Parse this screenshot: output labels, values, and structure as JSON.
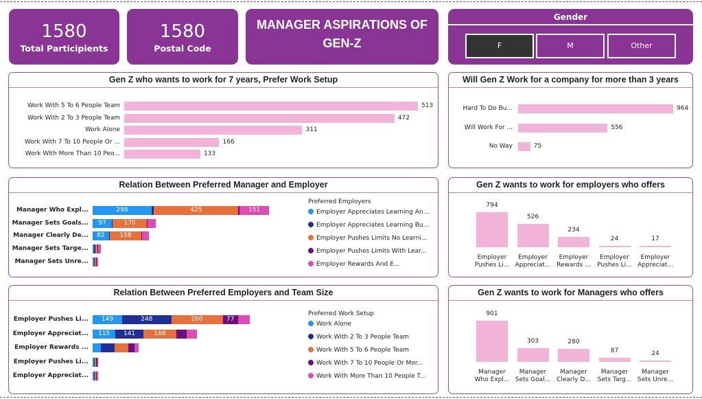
{
  "kpis": [
    {
      "value": "1580",
      "label": "Total Participients"
    },
    {
      "value": "1580",
      "label": "Postal Code"
    }
  ],
  "title": {
    "line1": "MANAGER ASPIRATIONS OF",
    "line2": "GEN-Z"
  },
  "gender": {
    "title": "Gender",
    "options": [
      "F",
      "M",
      "Other"
    ],
    "selected": "F"
  },
  "colors": {
    "brand": "#8a3496",
    "pink_bar": "#f2b3d9",
    "s1": "#2196f3",
    "s2": "#1f2f9a",
    "s3": "#e8713a",
    "s4": "#6d0f7c",
    "s5": "#e04bb4"
  },
  "chart_data": [
    {
      "type": "bar",
      "orientation": "horizontal",
      "title": "Gen Z who wants to work for 7 years, Prefer Work Setup",
      "categories": [
        "Work With 5 To 6 People Team",
        "Work With 2 To 3 People Team",
        "Work Alone",
        "Work With 7 To 10 People Or ...",
        "Work With More Than 10 Peo..."
      ],
      "values": [
        513,
        472,
        311,
        166,
        133
      ]
    },
    {
      "type": "bar",
      "orientation": "horizontal",
      "title": "Will Gen Z Work for a company for more than 3 years",
      "categories": [
        "Hard To Do Bu...",
        "Will Work For ...",
        "No Way"
      ],
      "values": [
        964,
        556,
        75
      ]
    },
    {
      "type": "bar",
      "orientation": "horizontal",
      "stacked": true,
      "title": "Relation Between Preferred Manager and Employer",
      "legend_title": "Preferred Employers",
      "categories": [
        "Manager Who Expl...",
        "Manager Sets Goals...",
        "Manager Clearly De...",
        "Manager Sets Targe...",
        "Manager Sets Unre..."
      ],
      "series": [
        {
          "name": "Employer Appreciates Learning An...",
          "values": [
            298,
            97,
            82,
            8,
            5
          ]
        },
        {
          "name": "Employer Appreciates Learning Bu...",
          "values": [
            12,
            5,
            4,
            2,
            2
          ]
        },
        {
          "name": "Employer Pushes Limits No Learni...",
          "values": [
            425,
            170,
            158,
            10,
            4
          ]
        },
        {
          "name": "Employer Pushes Limits With Lear...",
          "values": [
            6,
            4,
            3,
            2,
            2
          ]
        },
        {
          "name": "Employer Rewards And E...",
          "values": [
            151,
            42,
            33,
            12,
            7
          ]
        }
      ],
      "xlim": [
        0,
        1040
      ]
    },
    {
      "type": "bar",
      "title": "Gen Z wants to work for employers who offers",
      "categories": [
        "Employer Pushes Li...",
        "Employer Appreciat...",
        "Employer Rewards ...",
        "Employer Pushes Li...",
        "Employer Appreciat..."
      ],
      "values": [
        794,
        526,
        234,
        24,
        17
      ]
    },
    {
      "type": "bar",
      "orientation": "horizontal",
      "stacked": true,
      "title": "Relation Between Preferred Employers and Team Size",
      "legend_title": "Preferred Work Setup",
      "categories": [
        "Employer Pushes Li...",
        "Employer Appreciat...",
        "Employer Rewards ...",
        "Employer Pushes Li...",
        "Employer Appreciat..."
      ],
      "series": [
        {
          "name": "Work Alone",
          "values": [
            149,
            115,
            40,
            6,
            4
          ]
        },
        {
          "name": "Work With 2 To 3 People Team",
          "values": [
            248,
            141,
            70,
            6,
            4
          ]
        },
        {
          "name": "Work With 5 To 6 People Team",
          "values": [
            260,
            168,
            69,
            6,
            4
          ]
        },
        {
          "name": "Work With 7 To 10 People Or Mor...",
          "values": [
            77,
            52,
            32,
            3,
            2
          ]
        },
        {
          "name": "Work With More Than 10 People T...",
          "values": [
            60,
            50,
            23,
            3,
            3
          ]
        }
      ],
      "xlim": [
        0,
        1040
      ]
    },
    {
      "type": "bar",
      "title": "Gen Z wants to work for Managers who offers",
      "categories": [
        "Manager Who Expl...",
        "Manager Sets Goal...",
        "Manager Clearly D...",
        "Manager Sets Targ...",
        "Manager Sets Unre..."
      ],
      "values": [
        901,
        303,
        280,
        87,
        24
      ]
    }
  ]
}
